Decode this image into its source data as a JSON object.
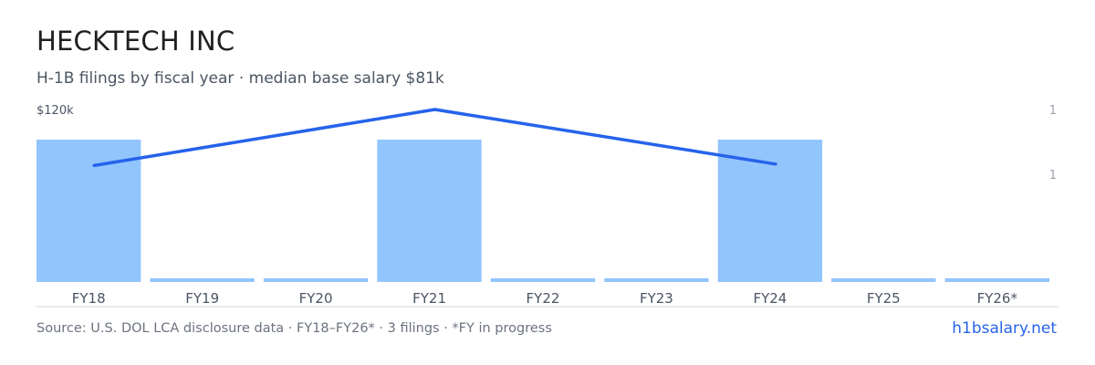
{
  "header": {
    "title": "HECKTECH INC",
    "subtitle": "H-1B filings by fiscal year · median base salary $81k"
  },
  "footer": {
    "source": "Source: U.S. DOL LCA disclosure data · FY18–FY26* · 3 filings · *FY in progress",
    "brand": "h1bsalary.net"
  },
  "colors": {
    "bar": "#93c5fd",
    "line": "#2563eb",
    "axis": "#d1d5db",
    "tick_text": "#4b5563",
    "right_axis_text": "#9ca3af"
  },
  "chart_data": {
    "type": "bar",
    "categories": [
      "FY18",
      "FY19",
      "FY20",
      "FY21",
      "FY22",
      "FY23",
      "FY24",
      "FY25",
      "FY26*"
    ],
    "series": [
      {
        "kind": "bar",
        "axis": "right",
        "values": [
          1,
          0,
          0,
          1,
          0,
          0,
          1,
          0,
          0
        ]
      },
      {
        "kind": "line",
        "axis": "left",
        "values": [
          81000,
          null,
          null,
          120000,
          null,
          null,
          82000,
          null,
          null
        ]
      }
    ],
    "left_axis": {
      "top_label": "$120k",
      "max": 120000
    },
    "right_axis": {
      "labels": [
        "1",
        "1"
      ]
    },
    "grid": false,
    "legend": "none"
  }
}
